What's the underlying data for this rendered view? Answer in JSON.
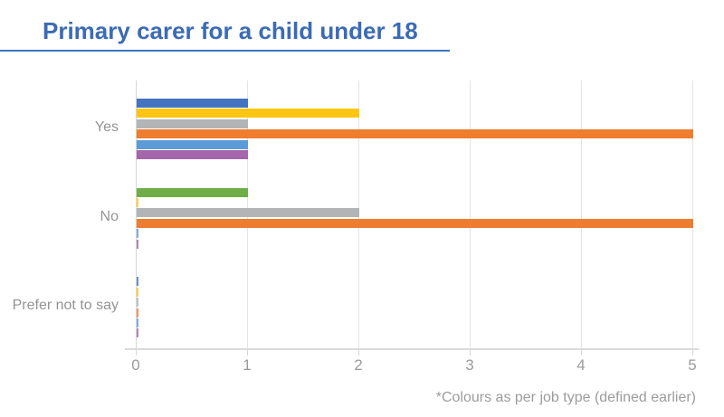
{
  "page": {
    "title": "Primary carer for a child under 18",
    "footnote": "*Colours as per job type (defined earlier)"
  },
  "colors": {
    "title_text": "#3B6BB4",
    "title_underline": "#4273BD",
    "axis_text": "#9B9B9B",
    "category_text": "#949494",
    "grid_line": "#E4E4E4",
    "axis_line": "#DADADA",
    "background": "#FFFFFF"
  },
  "chart_data": {
    "type": "bar",
    "orientation": "horizontal",
    "title": "Primary carer for a child under 18",
    "xlabel": "",
    "ylabel": "",
    "xlim": [
      0,
      5
    ],
    "x_ticks": [
      "0",
      "1",
      "2",
      "3",
      "4",
      "5"
    ],
    "grid": "vertical-only",
    "legend": false,
    "annotation": "*Colours as per job type (defined earlier)",
    "categories": [
      "Yes",
      "No",
      "Prefer not to say"
    ],
    "palette": {
      "blue": "#4574C0",
      "yellow": "#FEC513",
      "grey": "#B3B4B6",
      "orange": "#EE7D30",
      "light_blue": "#5C9BD7",
      "purple": "#A566AB",
      "green": "#70AD47"
    },
    "series": [
      {
        "name": "job-type-blue",
        "color": "#4574C0",
        "values": [
          1,
          0,
          0
        ]
      },
      {
        "name": "job-type-yellow",
        "color": "#FEC513",
        "values": [
          2,
          0,
          0
        ]
      },
      {
        "name": "job-type-grey",
        "color": "#B3B4B6",
        "values": [
          1,
          2,
          0
        ]
      },
      {
        "name": "job-type-orange",
        "color": "#EE7D30",
        "values": [
          5,
          5,
          0
        ]
      },
      {
        "name": "job-type-light-blue",
        "color": "#5C9BD7",
        "values": [
          1,
          0,
          0
        ]
      },
      {
        "name": "job-type-purple",
        "color": "#A566AB",
        "values": [
          1,
          0,
          0
        ]
      },
      {
        "name": "job-type-green",
        "color": "#70AD47",
        "values": [
          0,
          1,
          0
        ]
      }
    ],
    "bars": [
      {
        "category": "Yes",
        "slot": 0,
        "color": "blue",
        "value": 1
      },
      {
        "category": "Yes",
        "slot": 1,
        "color": "yellow",
        "value": 2
      },
      {
        "category": "Yes",
        "slot": 2,
        "color": "grey",
        "value": 1
      },
      {
        "category": "Yes",
        "slot": 3,
        "color": "orange",
        "value": 5
      },
      {
        "category": "Yes",
        "slot": 4,
        "color": "light_blue",
        "value": 1
      },
      {
        "category": "Yes",
        "slot": 5,
        "color": "purple",
        "value": 1
      },
      {
        "category": "No",
        "slot": 0,
        "color": "green",
        "value": 1
      },
      {
        "category": "No",
        "slot": 1,
        "color": "yellow",
        "value": 0
      },
      {
        "category": "No",
        "slot": 2,
        "color": "grey",
        "value": 2
      },
      {
        "category": "No",
        "slot": 3,
        "color": "orange",
        "value": 5
      },
      {
        "category": "No",
        "slot": 4,
        "color": "light_blue",
        "value": 0
      },
      {
        "category": "No",
        "slot": 5,
        "color": "purple",
        "value": 0
      },
      {
        "category": "Prefer not to say",
        "slot": 0,
        "color": "blue",
        "value": 0
      },
      {
        "category": "Prefer not to say",
        "slot": 1,
        "color": "yellow",
        "value": 0
      },
      {
        "category": "Prefer not to say",
        "slot": 2,
        "color": "grey",
        "value": 0
      },
      {
        "category": "Prefer not to say",
        "slot": 3,
        "color": "orange",
        "value": 0
      },
      {
        "category": "Prefer not to say",
        "slot": 4,
        "color": "light_blue",
        "value": 0
      },
      {
        "category": "Prefer not to say",
        "slot": 5,
        "color": "purple",
        "value": 0
      }
    ]
  }
}
